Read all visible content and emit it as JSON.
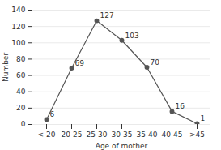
{
  "chart_data": {
    "type": "line",
    "categories": [
      "< 20",
      "20-25",
      "25-30",
      "30-35",
      "35-40",
      "40-45",
      ">45"
    ],
    "values": [
      6,
      69,
      127,
      103,
      70,
      16,
      1
    ],
    "color": "#555555",
    "marker": "circle",
    "xlabel": "Age of mother",
    "ylabel": "Number",
    "ylim": [
      0,
      140
    ],
    "yticks": [
      0,
      20,
      40,
      60,
      80,
      100,
      120,
      140
    ],
    "grid": true,
    "data_labels": true
  }
}
